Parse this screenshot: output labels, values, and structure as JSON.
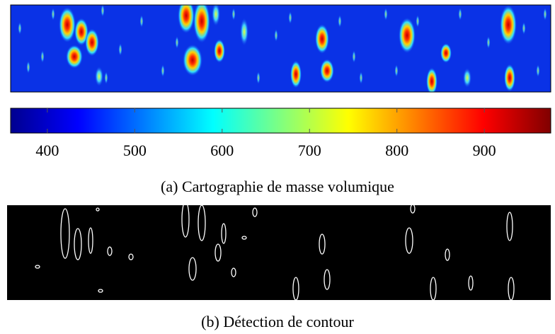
{
  "subfigures": [
    {
      "caption": "(a) Cartographie de masse volumique",
      "colorbar": {
        "lim": [
          358,
          976
        ],
        "ticks": [
          400,
          500,
          600,
          700,
          800,
          900
        ]
      }
    },
    {
      "caption": "(b) Détection de contour"
    }
  ]
}
